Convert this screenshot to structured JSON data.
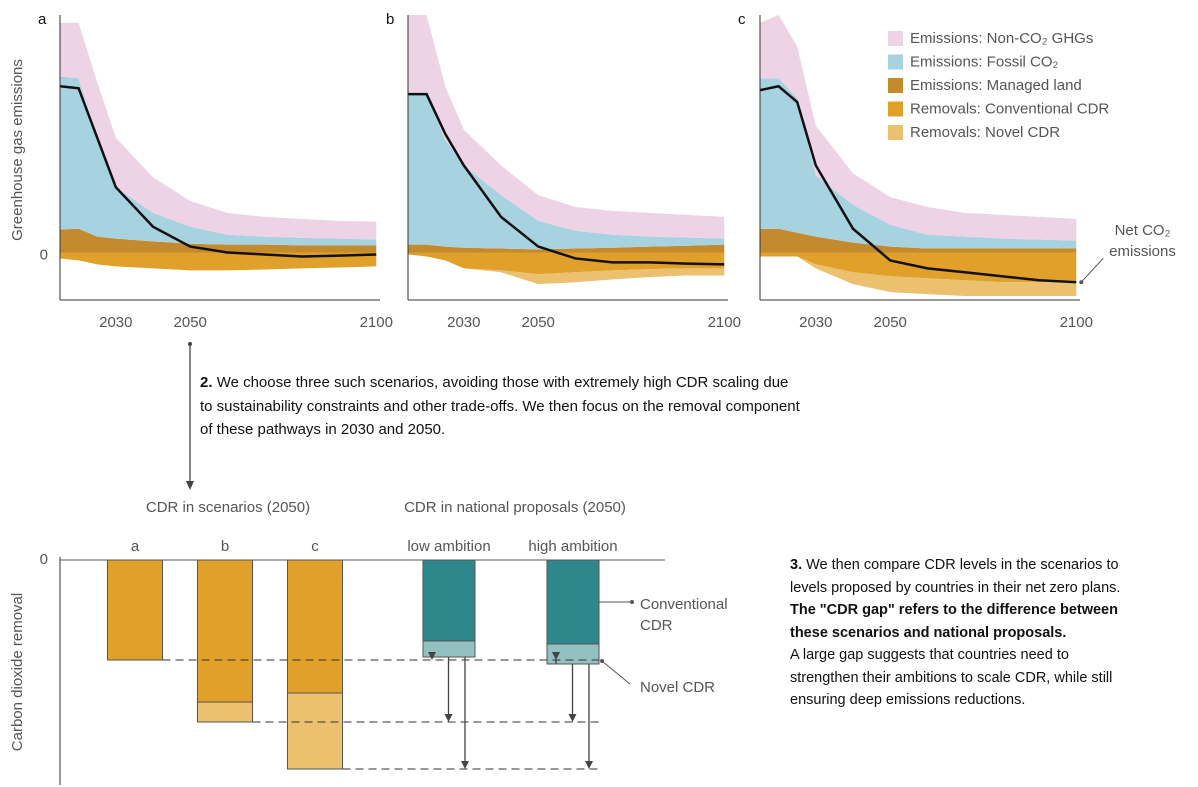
{
  "chart_data": [
    {
      "type": "area",
      "panel": "a",
      "ylabel": "Greenhouse gas emissions",
      "x": [
        2015,
        2020,
        2025,
        2030,
        2040,
        2050,
        2060,
        2070,
        2080,
        2090,
        2100
      ],
      "xlim": [
        2015,
        2101
      ],
      "xticks": [
        2030,
        2050,
        2100
      ],
      "ylim": [
        -12,
        60
      ],
      "yticks": [
        0
      ],
      "series": [
        {
          "color": "#eed3e6",
          "stack": "up",
          "values": [
            13.5,
            14,
            14,
            12.5,
            9,
            6.5,
            5.5,
            5,
            4.8,
            4.5,
            4.5
          ]
        },
        {
          "color": "#a7d3e0",
          "stack": "up",
          "values": [
            38.7,
            38,
            25,
            13,
            7.2,
            4.3,
            2.5,
            2,
            1.9,
            1.7,
            1.5
          ]
        },
        {
          "color": "#c48a2e",
          "stack": "up",
          "values": [
            5.8,
            6,
            4,
            3.5,
            2.8,
            2.2,
            2,
            2,
            1.8,
            1.8,
            1.8
          ]
        },
        {
          "color": "#e0a02a",
          "stack": "down",
          "values": [
            -1.5,
            -2,
            -3,
            -3.5,
            -4,
            -4.5,
            -4.5,
            -4.3,
            -4,
            -3.8,
            -3.5
          ]
        },
        {
          "color": "#ebc06e",
          "stack": "down",
          "values": [
            0,
            0,
            0,
            0,
            0,
            0,
            0,
            0,
            0,
            0,
            0
          ]
        }
      ],
      "net_line": {
        "color": "#111111",
        "values": [
          42,
          41.5,
          29,
          16.5,
          6.5,
          1.5,
          0,
          -0.5,
          -1,
          -0.8,
          -0.5
        ]
      }
    },
    {
      "type": "area",
      "panel": "b",
      "x": [
        2015,
        2020,
        2025,
        2030,
        2040,
        2050,
        2060,
        2070,
        2080,
        2090,
        2100
      ],
      "xlim": [
        2015,
        2101
      ],
      "xticks": [
        2030,
        2050,
        2100
      ],
      "ylim": [
        -12,
        60
      ],
      "series": [
        {
          "color": "#eed3e6",
          "stack": "up",
          "values": [
            20,
            20,
            13.5,
            9,
            7.5,
            6.5,
            6,
            6,
            6,
            5.7,
            5.5
          ]
        },
        {
          "color": "#a7d3e0",
          "stack": "up",
          "values": [
            38,
            38,
            27,
            20.8,
            13.5,
            7.2,
            4.5,
            3.3,
            2.5,
            2.1,
            1.5
          ]
        },
        {
          "color": "#c48a2e",
          "stack": "up",
          "values": [
            2,
            2,
            1.5,
            1.2,
            1,
            0.8,
            1,
            1.2,
            1.5,
            1.7,
            2
          ]
        },
        {
          "color": "#e0a02a",
          "stack": "down",
          "values": [
            -0.5,
            -1,
            -2,
            -4,
            -4.5,
            -5.5,
            -5,
            -4.5,
            -4.2,
            -4,
            -4
          ]
        },
        {
          "color": "#ebc06e",
          "stack": "down",
          "values": [
            0,
            0,
            0,
            0,
            -0.5,
            -2.5,
            -2.5,
            -2.3,
            -2,
            -1.8,
            -1.8
          ]
        }
      ],
      "net_line": {
        "color": "#111111",
        "values": [
          40,
          40,
          30,
          22,
          9,
          1.5,
          -1.5,
          -2.5,
          -2.5,
          -2.8,
          -3
        ]
      }
    },
    {
      "type": "area",
      "panel": "c",
      "legend": "top-right",
      "x": [
        2015,
        2020,
        2025,
        2030,
        2040,
        2050,
        2060,
        2070,
        2080,
        2090,
        2100
      ],
      "xlim": [
        2015,
        2101
      ],
      "xticks": [
        2030,
        2050,
        2100
      ],
      "ylim": [
        -12,
        60
      ],
      "series": [
        {
          "name": "Emissions: Non-CO₂ GHGs",
          "color": "#eed3e6",
          "stack": "up",
          "values": [
            14,
            16,
            13,
            12.5,
            8,
            7,
            7,
            6,
            6,
            5.7,
            5.5
          ]
        },
        {
          "name": "Emissions: Fossil CO₂",
          "color": "#a7d3e0",
          "stack": "up",
          "values": [
            38,
            38,
            34,
            15.5,
            9.5,
            5.5,
            3.5,
            3,
            2.5,
            2.3,
            2
          ]
        },
        {
          "name": "Emissions: Managed land",
          "color": "#c48a2e",
          "stack": "up",
          "values": [
            6,
            6,
            5,
            4,
            2.5,
            1.5,
            1,
            1,
            1,
            1,
            1
          ]
        },
        {
          "name": "Removals: Conventional CDR",
          "color": "#e0a02a",
          "stack": "down",
          "values": [
            -1,
            -1,
            -1,
            -3,
            -5,
            -6,
            -6.5,
            -7,
            -7.5,
            -7.5,
            -7.5
          ]
        },
        {
          "name": "Removals: Novel CDR",
          "color": "#ebc06e",
          "stack": "down",
          "values": [
            0,
            0,
            0,
            -1,
            -3,
            -4,
            -4,
            -4,
            -3.5,
            -3.5,
            -3.5
          ]
        }
      ],
      "net_line": {
        "name": "Net CO₂ emissions",
        "color": "#111111",
        "values": [
          41,
          42,
          38,
          22,
          6,
          -2,
          -4,
          -5,
          -6,
          -7,
          -7.5
        ]
      }
    },
    {
      "type": "bar",
      "stacked": true,
      "ylabel": "Carbon dioxide removal",
      "group_titles": [
        "CDR in scenarios (2050)",
        "CDR in national proposals (2050)"
      ],
      "categories": [
        "a",
        "b",
        "c",
        "low ambition",
        "high ambition"
      ],
      "ylim": [
        -45,
        0
      ],
      "yticks": [
        0
      ],
      "series": [
        {
          "name": "Conventional CDR",
          "colors": [
            "#e0a02a",
            "#e0a02a",
            "#e0a02a",
            "#2e878a",
            "#2e878a"
          ],
          "values": [
            -20,
            -28.4,
            -26.6,
            -16.2,
            -16.8
          ]
        },
        {
          "name": "Novel CDR",
          "colors": [
            "#ebc06e",
            "#ebc06e",
            "#ebc06e",
            "#93c0c1",
            "#93c0c1"
          ],
          "values": [
            0,
            -4,
            -15.2,
            -3.2,
            -4
          ]
        }
      ]
    }
  ],
  "step2": {
    "lead": "2.",
    "text": "We choose three such scenarios, avoiding those with extremely high CDR scaling due to sustainability constraints and other trade-offs. We then focus on the removal component of these pathways in 2030 and 2050."
  },
  "step3": {
    "lead": "3.",
    "text": "We then compare CDR levels in the scenarios to levels proposed by countries in their net zero plans.",
    "bold": "The \"CDR gap\" refers to the difference between these scenarios and national proposals.",
    "text2": "A large gap suggests that countries need to strengthen their ambitions to scale CDR, while still ensuring deep emissions reductions."
  }
}
